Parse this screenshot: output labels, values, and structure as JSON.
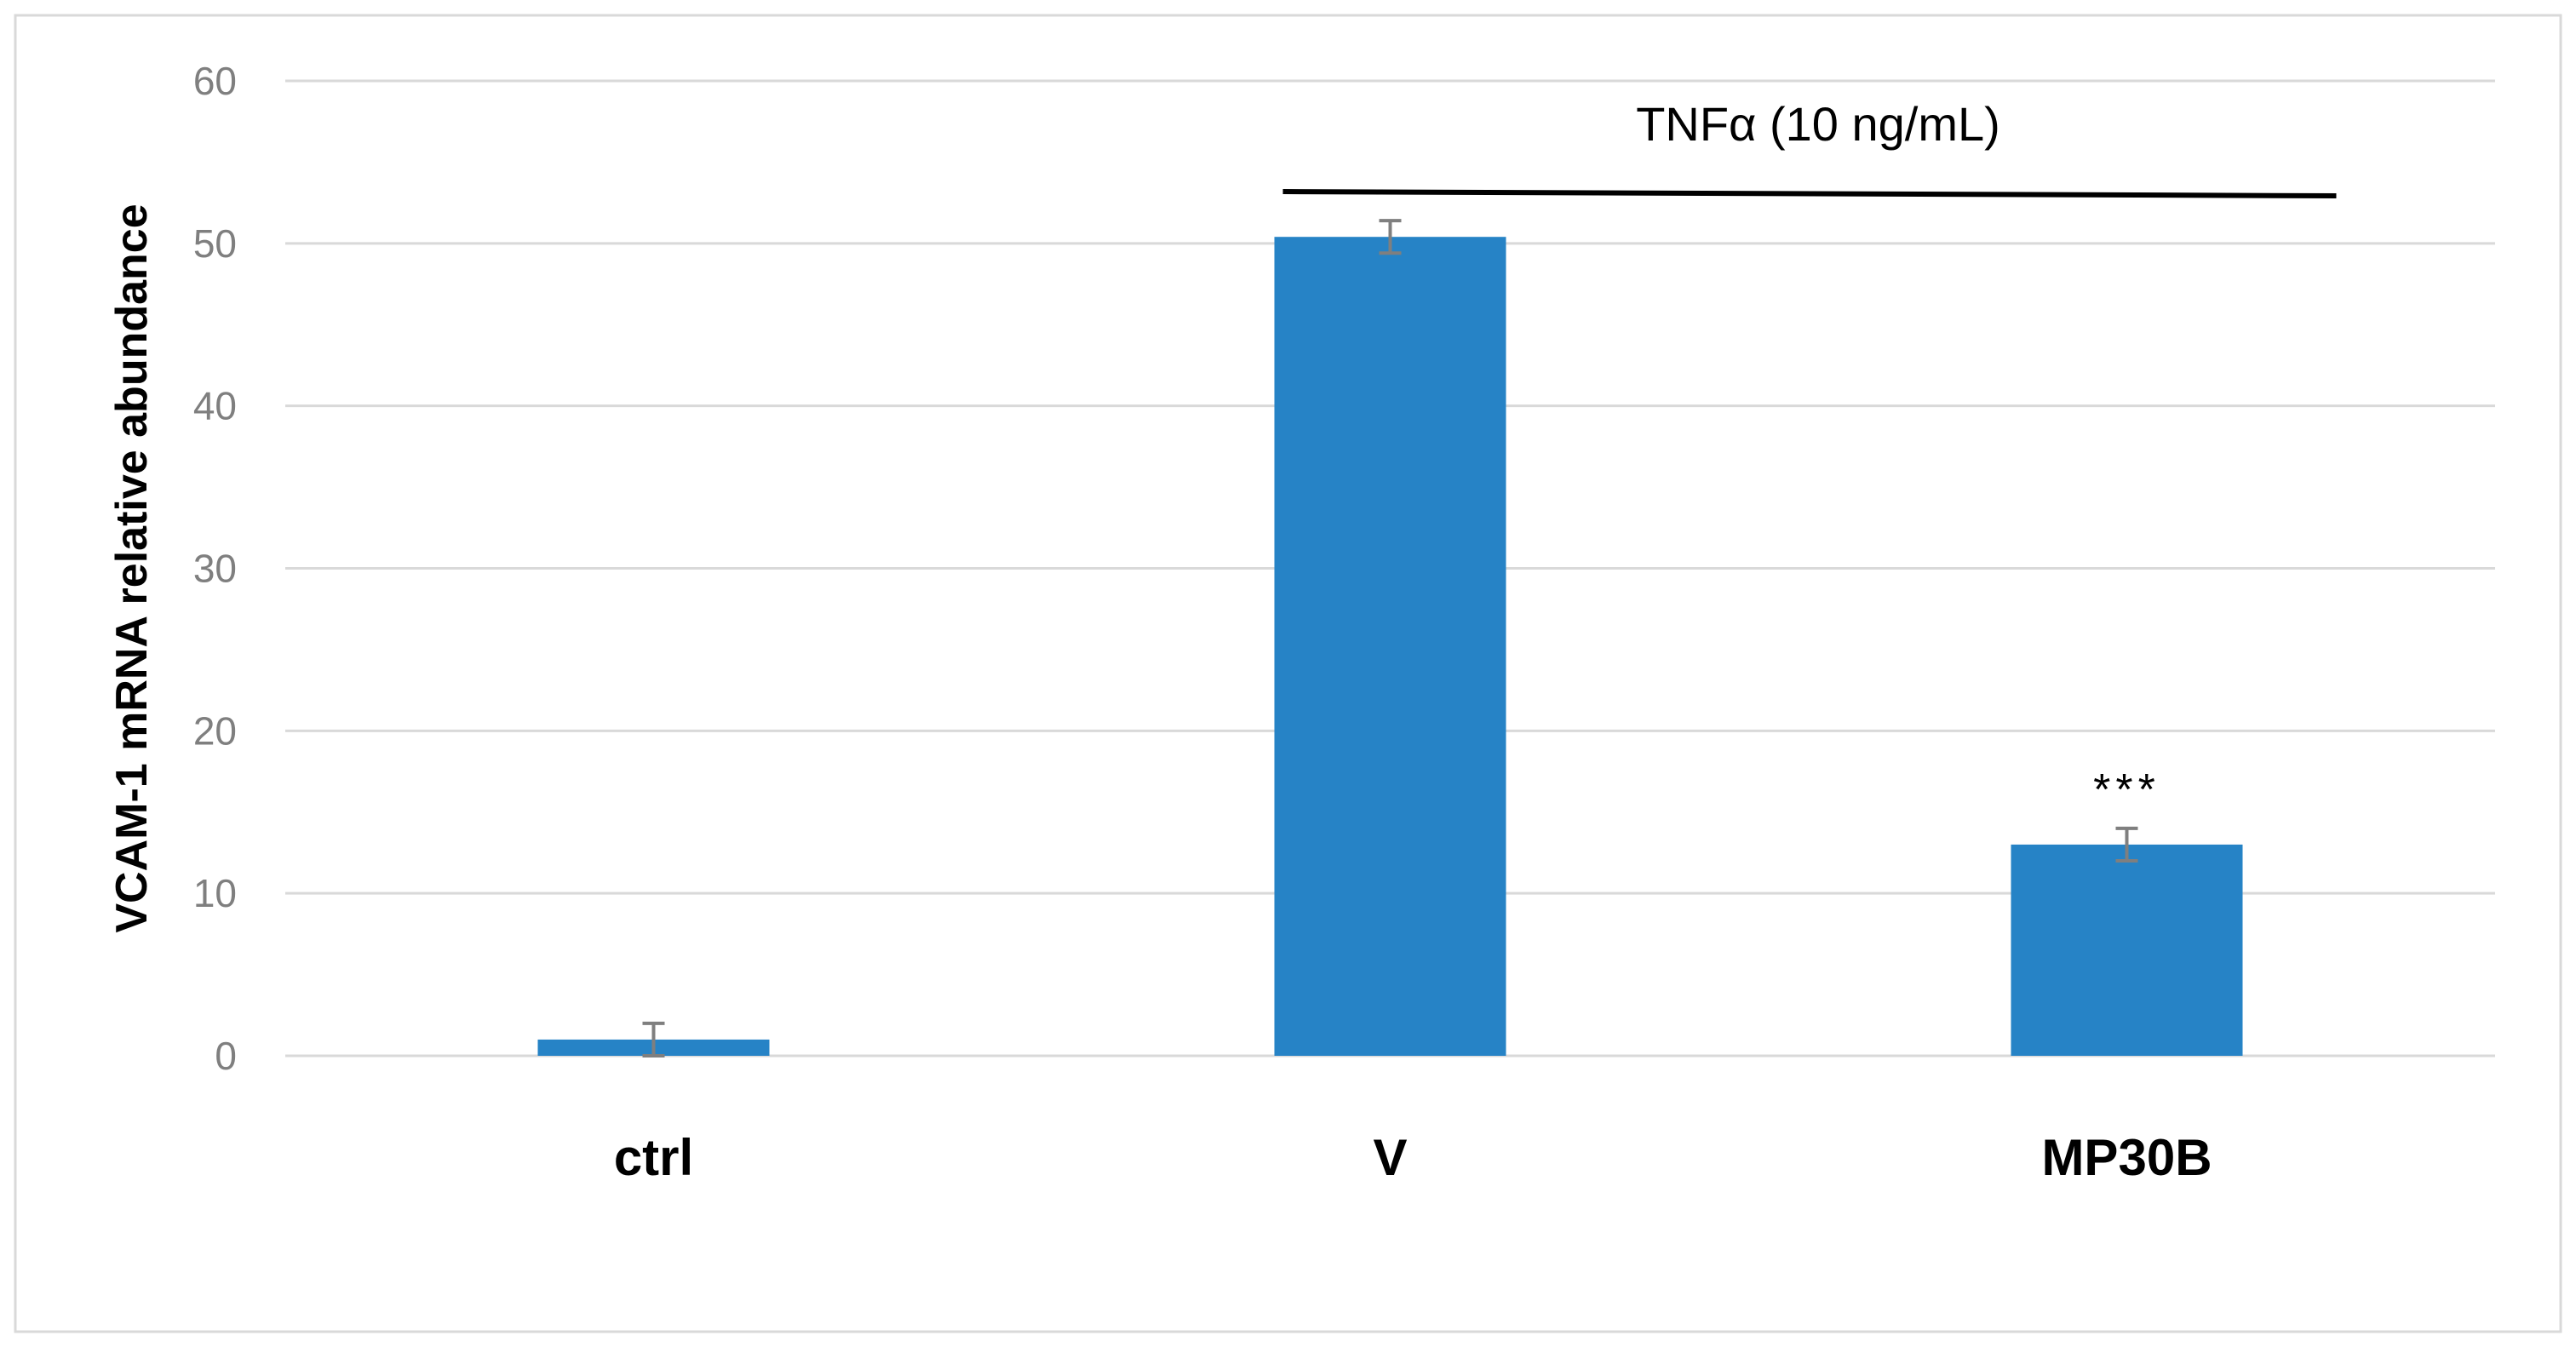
{
  "chart_data": {
    "type": "bar",
    "categories": [
      "ctrl",
      "V",
      "MP30B"
    ],
    "values": [
      1.0,
      50.4,
      13.0
    ],
    "errors": [
      1.0,
      1.0,
      1.0
    ],
    "ylabel": "VCAM-1 mRNA relative abundance",
    "xlabel": "",
    "ylim": [
      0,
      60
    ],
    "yticks": [
      0,
      10,
      20,
      30,
      40,
      50,
      60
    ],
    "grid": true,
    "bar_color": "#2683c6",
    "error_color": "#7f7f7f",
    "annotations": {
      "treatment_label": "TNFα (10 ng/mL)",
      "treatment_spans": [
        "V",
        "MP30B"
      ],
      "significance": [
        {
          "category": "MP30B",
          "label": "***"
        }
      ]
    }
  }
}
